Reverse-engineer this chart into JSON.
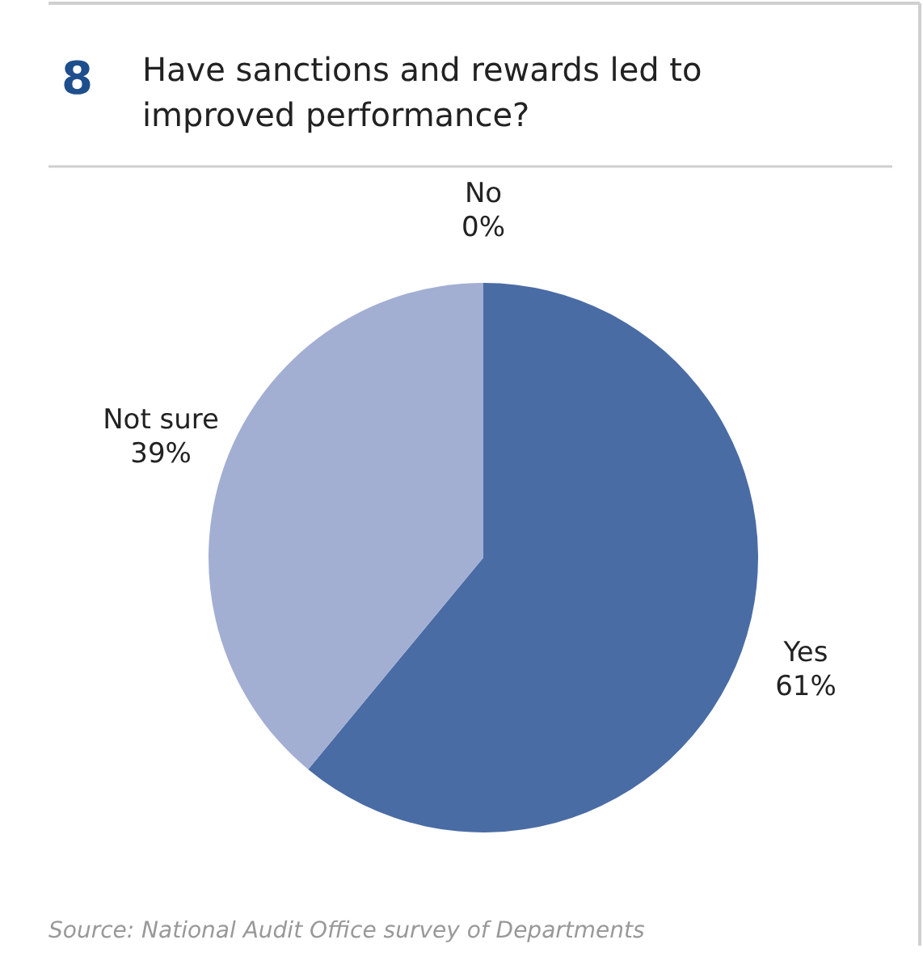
{
  "chart_data": {
    "type": "pie",
    "title": "Have sanctions and rewards led to improved performance?",
    "categories": [
      "Yes",
      "Not sure",
      "No"
    ],
    "values": [
      61,
      39,
      0
    ],
    "colors": [
      "#4a6ca5",
      "#a3aed3",
      "#7f8fc0"
    ],
    "value_labels": [
      "61%",
      "39%",
      "0%"
    ],
    "annotations": [
      "8",
      "Source: National Audit Office survey of Departments"
    ]
  }
}
